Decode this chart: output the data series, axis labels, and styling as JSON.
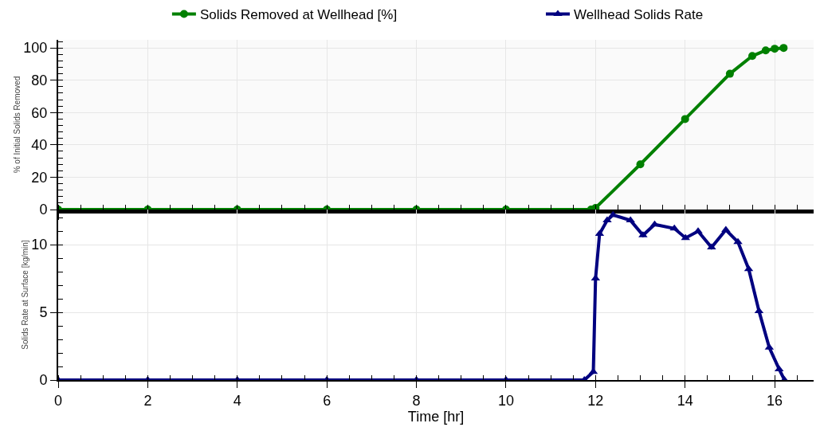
{
  "chart_data": [
    {
      "type": "line",
      "ylabel": "% of Initial Solids Removed",
      "xlim": [
        0,
        16.87
      ],
      "ylim": [
        0,
        105
      ],
      "yticks": [
        0,
        20,
        40,
        60,
        80,
        100
      ],
      "xticks": [
        0,
        2,
        4,
        6,
        8,
        10,
        12,
        14,
        16
      ],
      "tick_labels": "y",
      "grid": true,
      "legend": "top",
      "marker": "circle",
      "line_style": "solid",
      "series": [
        {
          "name": "Solids Removed at Wellhead [%]",
          "color": "#008000",
          "x": [
            0,
            2,
            4,
            6,
            8,
            10,
            11.9,
            12,
            13,
            14,
            15,
            15.5,
            15.8,
            16,
            16.2
          ],
          "values": [
            0,
            0,
            0,
            0,
            0,
            0,
            0,
            1,
            28,
            56,
            84,
            95,
            98.5,
            99.5,
            100
          ]
        }
      ]
    },
    {
      "type": "line",
      "xlabel": "Time [hr]",
      "ylabel": "Solids Rate at Surface [kg/min]",
      "xlim": [
        0,
        16.87
      ],
      "ylim": [
        0,
        12.6
      ],
      "yticks": [
        0,
        5,
        10
      ],
      "xticks": [
        0,
        2,
        4,
        6,
        8,
        10,
        12,
        14,
        16
      ],
      "grid": true,
      "legend": "top",
      "marker": "triangle",
      "line_style": "solid",
      "series": [
        {
          "name": "Wellhead Solids Rate",
          "color": "#000080",
          "x": [
            0,
            2,
            4,
            6,
            8,
            10,
            11.75,
            11.95,
            12.0,
            12.09,
            12.26,
            12.39,
            12.78,
            13.06,
            13.32,
            13.76,
            14.01,
            14.29,
            14.59,
            14.91,
            15.18,
            15.42,
            15.65,
            15.88,
            16.1,
            16.22
          ],
          "values": [
            0,
            0,
            0,
            0,
            0,
            0,
            0,
            0.6,
            7.5,
            10.8,
            11.8,
            12.2,
            11.8,
            10.7,
            11.5,
            11.2,
            10.5,
            11.0,
            9.8,
            11.1,
            10.2,
            8.2,
            5.1,
            2.4,
            0.8,
            0
          ]
        }
      ]
    }
  ]
}
